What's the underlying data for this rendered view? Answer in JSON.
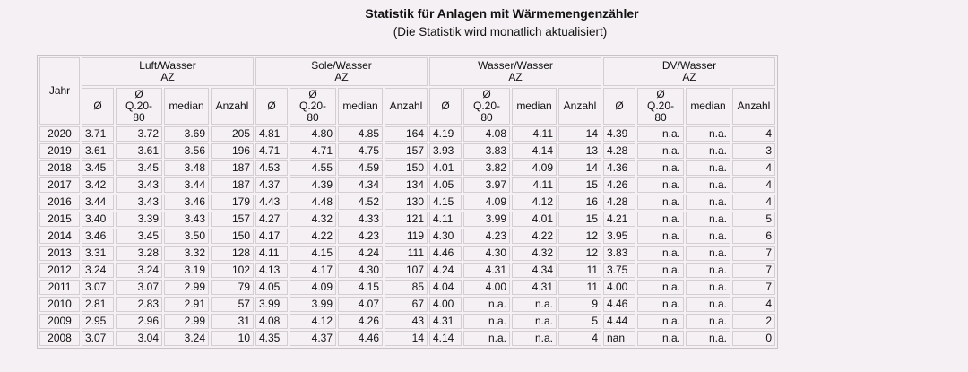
{
  "title": "Statistik für Anlagen mit Wärmemengenzähler",
  "subtitle": "(Die Statistik wird monatlich aktualisiert)",
  "year_header": "Jahr",
  "groups": [
    {
      "name": "Luft/Wasser",
      "unit": "AZ"
    },
    {
      "name": "Sole/Wasser",
      "unit": "AZ"
    },
    {
      "name": "Wasser/Wasser",
      "unit": "AZ"
    },
    {
      "name": "DV/Wasser",
      "unit": "AZ"
    }
  ],
  "subheaders": {
    "avg": "Ø",
    "q_avg_line1": "Ø",
    "q_avg_line2": "Q.20-80",
    "median": "median",
    "count": "Anzahl"
  },
  "rows": [
    {
      "year": "2020",
      "values": [
        "3.71",
        "3.72",
        "3.69",
        "205",
        "4.81",
        "4.80",
        "4.85",
        "164",
        "4.19",
        "4.08",
        "4.11",
        "14",
        "4.39",
        "n.a.",
        "n.a.",
        "4"
      ]
    },
    {
      "year": "2019",
      "values": [
        "3.61",
        "3.61",
        "3.56",
        "196",
        "4.71",
        "4.71",
        "4.75",
        "157",
        "3.93",
        "3.83",
        "4.14",
        "13",
        "4.28",
        "n.a.",
        "n.a.",
        "3"
      ]
    },
    {
      "year": "2018",
      "values": [
        "3.45",
        "3.45",
        "3.48",
        "187",
        "4.53",
        "4.55",
        "4.59",
        "150",
        "4.01",
        "3.82",
        "4.09",
        "14",
        "4.36",
        "n.a.",
        "n.a.",
        "4"
      ]
    },
    {
      "year": "2017",
      "values": [
        "3.42",
        "3.43",
        "3.44",
        "187",
        "4.37",
        "4.39",
        "4.34",
        "134",
        "4.05",
        "3.97",
        "4.11",
        "15",
        "4.26",
        "n.a.",
        "n.a.",
        "4"
      ]
    },
    {
      "year": "2016",
      "values": [
        "3.44",
        "3.43",
        "3.46",
        "179",
        "4.43",
        "4.48",
        "4.52",
        "130",
        "4.15",
        "4.09",
        "4.12",
        "16",
        "4.28",
        "n.a.",
        "n.a.",
        "4"
      ]
    },
    {
      "year": "2015",
      "values": [
        "3.40",
        "3.39",
        "3.43",
        "157",
        "4.27",
        "4.32",
        "4.33",
        "121",
        "4.11",
        "3.99",
        "4.01",
        "15",
        "4.21",
        "n.a.",
        "n.a.",
        "5"
      ]
    },
    {
      "year": "2014",
      "values": [
        "3.46",
        "3.45",
        "3.50",
        "150",
        "4.17",
        "4.22",
        "4.23",
        "119",
        "4.30",
        "4.23",
        "4.22",
        "12",
        "3.95",
        "n.a.",
        "n.a.",
        "6"
      ]
    },
    {
      "year": "2013",
      "values": [
        "3.31",
        "3.28",
        "3.32",
        "128",
        "4.11",
        "4.15",
        "4.24",
        "111",
        "4.46",
        "4.30",
        "4.32",
        "12",
        "3.83",
        "n.a.",
        "n.a.",
        "7"
      ]
    },
    {
      "year": "2012",
      "values": [
        "3.24",
        "3.24",
        "3.19",
        "102",
        "4.13",
        "4.17",
        "4.30",
        "107",
        "4.24",
        "4.31",
        "4.34",
        "11",
        "3.75",
        "n.a.",
        "n.a.",
        "7"
      ]
    },
    {
      "year": "2011",
      "values": [
        "3.07",
        "3.07",
        "2.99",
        "79",
        "4.05",
        "4.09",
        "4.15",
        "85",
        "4.04",
        "4.00",
        "4.31",
        "11",
        "4.00",
        "n.a.",
        "n.a.",
        "7"
      ]
    },
    {
      "year": "2010",
      "values": [
        "2.81",
        "2.83",
        "2.91",
        "57",
        "3.99",
        "3.99",
        "4.07",
        "67",
        "4.00",
        "n.a.",
        "n.a.",
        "9",
        "4.46",
        "n.a.",
        "n.a.",
        "4"
      ]
    },
    {
      "year": "2009",
      "values": [
        "2.95",
        "2.96",
        "2.99",
        "31",
        "4.08",
        "4.12",
        "4.26",
        "43",
        "4.31",
        "n.a.",
        "n.a.",
        "5",
        "4.44",
        "n.a.",
        "n.a.",
        "2"
      ]
    },
    {
      "year": "2008",
      "values": [
        "3.07",
        "3.04",
        "3.24",
        "10",
        "4.35",
        "4.37",
        "4.46",
        "14",
        "4.14",
        "n.a.",
        "n.a.",
        "4",
        "nan",
        "n.a.",
        "n.a.",
        "0"
      ]
    }
  ]
}
